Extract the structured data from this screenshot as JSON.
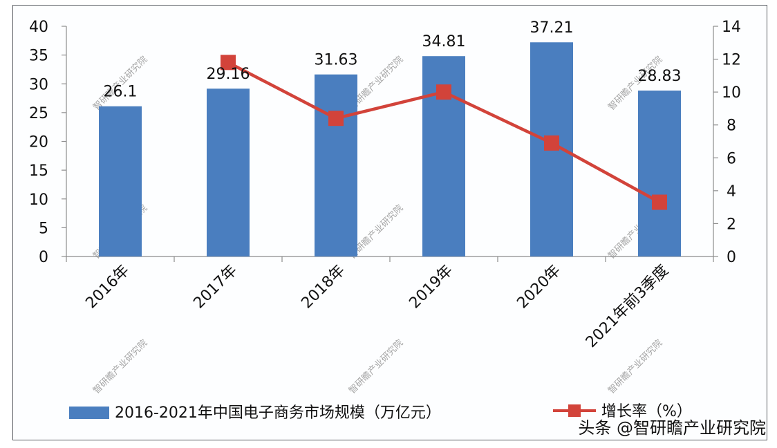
{
  "chart_data": {
    "type": "bar+line",
    "title": "",
    "categories": [
      "2016年",
      "2017年",
      "2018年",
      "2019年",
      "2020年",
      "2021年前3季度"
    ],
    "series": [
      {
        "name": "2016-2021年中国电子商务市场规模（万亿元）",
        "type": "bar",
        "axis": "left",
        "color": "#4a7ebf",
        "values": [
          26.1,
          29.16,
          31.63,
          34.81,
          37.21,
          28.83
        ],
        "labels": [
          "26.1",
          "29.16",
          "31.63",
          "34.81",
          "37.21",
          "28.83"
        ]
      },
      {
        "name": "增长率（%）",
        "type": "line",
        "axis": "right",
        "color": "#d2433a",
        "values": [
          null,
          11.8,
          8.4,
          10.0,
          6.9,
          3.3
        ]
      }
    ],
    "left_axis": {
      "min": 0,
      "max": 40,
      "step": 5,
      "ticks": [
        "0",
        "5",
        "10",
        "15",
        "20",
        "25",
        "30",
        "35",
        "40"
      ]
    },
    "right_axis": {
      "min": 0,
      "max": 14,
      "step": 2,
      "ticks": [
        "0",
        "2",
        "4",
        "6",
        "8",
        "10",
        "12",
        "14"
      ]
    },
    "xlabel": "",
    "ylabel": "",
    "grid": false,
    "legend_position": "bottom"
  },
  "legend": {
    "bar_label": "2016-2021年中国电子商务市场规模（万亿元）",
    "line_label": "增长率（%）"
  },
  "watermark": "智研瞻产业研究院",
  "credit": "头条 @智研瞻产业研究院"
}
